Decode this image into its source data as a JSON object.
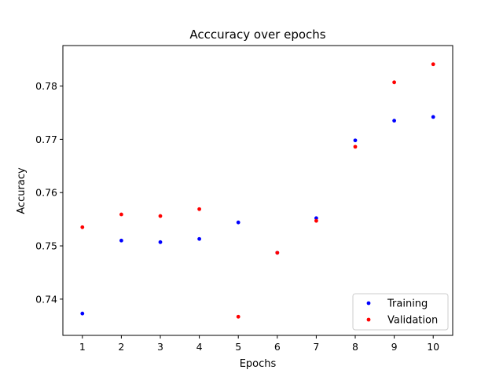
{
  "chart_data": {
    "type": "scatter",
    "title": "Acccuracy over epochs",
    "xlabel": "Epochs",
    "ylabel": "Accuracy",
    "x": [
      1,
      2,
      3,
      4,
      5,
      6,
      7,
      8,
      9,
      10
    ],
    "xticks": [
      "1",
      "2",
      "3",
      "4",
      "5",
      "6",
      "7",
      "8",
      "9",
      "10"
    ],
    "yticks": [
      0.74,
      0.75,
      0.76,
      0.77,
      0.78
    ],
    "ytick_labels": [
      "0.74",
      "0.75",
      "0.76",
      "0.77",
      "0.78"
    ],
    "xlim": [
      0.5,
      10.5
    ],
    "ylim": [
      0.7332,
      0.7876
    ],
    "grid": false,
    "legend_position": "lower-right",
    "series": [
      {
        "name": "Training",
        "color": "#0000ff",
        "values": [
          0.7373,
          0.751,
          0.7507,
          0.7513,
          0.7544,
          0.7487,
          0.7552,
          0.7698,
          0.7735,
          0.7742
        ]
      },
      {
        "name": "Validation",
        "color": "#ff0000",
        "values": [
          0.7535,
          0.7559,
          0.7556,
          0.7569,
          0.7367,
          0.7487,
          0.7547,
          0.7686,
          0.7807,
          0.7841
        ]
      }
    ]
  }
}
